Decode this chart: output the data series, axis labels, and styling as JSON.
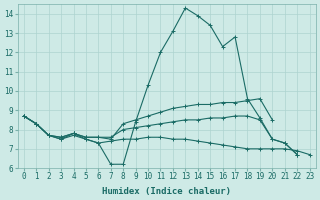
{
  "xlabel": "Humidex (Indice chaleur)",
  "background_color": "#ceeae6",
  "grid_color": "#aed4d0",
  "line_color": "#1a6b65",
  "x_values": [
    0,
    1,
    2,
    3,
    4,
    5,
    6,
    7,
    8,
    9,
    10,
    11,
    12,
    13,
    14,
    15,
    16,
    17,
    18,
    19,
    20,
    21,
    22,
    23
  ],
  "series": [
    [
      8.7,
      8.3,
      7.7,
      7.5,
      7.8,
      7.5,
      7.3,
      6.2,
      6.2,
      8.4,
      10.3,
      12.0,
      13.1,
      14.3,
      13.9,
      13.4,
      12.3,
      12.8,
      9.6,
      8.6,
      7.5,
      7.3,
      6.7,
      null
    ],
    [
      8.7,
      8.3,
      7.7,
      7.6,
      7.8,
      7.6,
      7.6,
      7.5,
      8.3,
      8.5,
      8.7,
      8.9,
      9.1,
      9.2,
      9.3,
      9.3,
      9.4,
      9.4,
      9.5,
      9.6,
      8.5,
      null,
      null,
      null
    ],
    [
      8.7,
      8.3,
      7.7,
      7.6,
      7.8,
      7.6,
      7.6,
      7.6,
      8.0,
      8.1,
      8.2,
      8.3,
      8.4,
      8.5,
      8.5,
      8.6,
      8.6,
      8.7,
      8.7,
      8.5,
      7.5,
      7.3,
      6.7,
      null
    ],
    [
      8.7,
      8.3,
      7.7,
      7.5,
      7.7,
      7.5,
      7.3,
      7.4,
      7.5,
      7.5,
      7.6,
      7.6,
      7.5,
      7.5,
      7.4,
      7.3,
      7.2,
      7.1,
      7.0,
      7.0,
      7.0,
      7.0,
      6.9,
      6.7
    ]
  ],
  "xlim": [
    -0.5,
    23.5
  ],
  "ylim": [
    6.0,
    14.5
  ],
  "yticks": [
    6,
    7,
    8,
    9,
    10,
    11,
    12,
    13,
    14
  ],
  "xticks": [
    0,
    1,
    2,
    3,
    4,
    5,
    6,
    7,
    8,
    9,
    10,
    11,
    12,
    13,
    14,
    15,
    16,
    17,
    18,
    19,
    20,
    21,
    22,
    23
  ],
  "xlabel_fontsize": 6.5,
  "tick_fontsize": 5.5,
  "marker_size": 2.0,
  "linewidth": 0.8
}
